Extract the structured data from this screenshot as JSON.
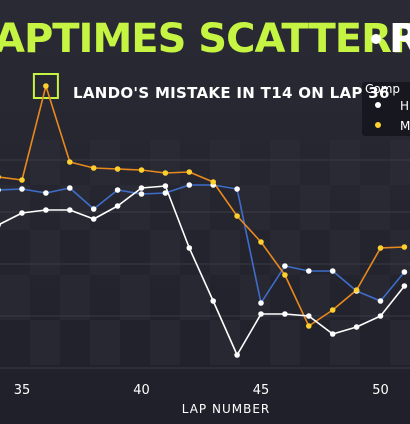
{
  "title": "APTIMES SCATTERPLOT",
  "title_suffix": "R",
  "annotation": {
    "text": "LANDO'S MISTAKE IN T14 ON LAP 36",
    "x": 36
  },
  "legend": {
    "title": "Comp",
    "entries": [
      "H",
      "M"
    ]
  },
  "colors": {
    "background": "#23232c",
    "title": "#c5f542",
    "series_blue": "#3e6ec9",
    "series_orange": "#e8891e",
    "series_white": "#ffffff",
    "marker_yellow": "#fdd02e",
    "marker_white": "#ffffff"
  },
  "chart_data": {
    "type": "line",
    "xlabel": "LAP NUMBER",
    "xlim": [
      33.1,
      51.2
    ],
    "xticks": [
      35,
      40,
      45,
      50
    ],
    "ylabel": "",
    "series": [
      {
        "color": "blue",
        "x": [
          34,
          35,
          36,
          37,
          38,
          39,
          40,
          41,
          42,
          43,
          44,
          45,
          46,
          47,
          48,
          49,
          50,
          51
        ],
        "y": [
          0.4,
          0.3,
          0.7,
          0.2,
          2.3,
          0.4,
          0.8,
          0.7,
          -0.1,
          -0.1,
          0.3,
          11.7,
          8.0,
          8.5,
          8.5,
          10.5,
          11.5,
          8.6
        ]
      },
      {
        "color": "orange",
        "x": [
          34,
          35,
          36,
          37,
          38,
          39,
          40,
          41,
          42,
          43,
          44,
          45,
          46,
          47,
          48,
          49,
          50,
          51
        ],
        "y": [
          -0.9,
          -0.6,
          -10.0,
          -2.4,
          -1.8,
          -1.7,
          -1.6,
          -1.3,
          -1.4,
          -0.4,
          3.0,
          5.6,
          8.9,
          14.0,
          12.4,
          10.4,
          6.2,
          6.1
        ]
      },
      {
        "color": "white",
        "x": [
          33,
          34,
          35,
          36,
          37,
          38,
          39,
          40,
          41,
          42,
          43,
          44,
          45,
          46,
          47,
          48,
          49,
          50,
          51
        ],
        "y": [
          2.2,
          3.9,
          2.7,
          2.4,
          2.4,
          3.3,
          2.0,
          0.2,
          0.0,
          6.2,
          11.5,
          16.9,
          12.8,
          12.8,
          13.0,
          14.8,
          14.1,
          13.0,
          10.0
        ]
      }
    ]
  }
}
